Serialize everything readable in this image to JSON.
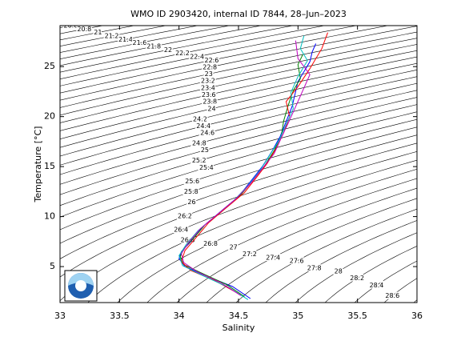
{
  "chart_data": {
    "type": "line",
    "title": "WMO ID 2903420, internal ID 7844, 28–Jun–2023",
    "x_label": "Salinity",
    "y_label": "Temperature [°C]",
    "xlim": [
      33,
      36
    ],
    "ylim": [
      1.4,
      29.1
    ],
    "xticks": [
      33,
      33.5,
      34,
      34.5,
      35,
      35.5,
      36
    ],
    "yticks": [
      5,
      10,
      15,
      20,
      25
    ],
    "contour_levels": [
      20.6,
      20.8,
      21,
      21.2,
      21.4,
      21.6,
      21.8,
      22,
      22.2,
      22.4,
      22.6,
      22.8,
      23,
      23.2,
      23.4,
      23.6,
      23.8,
      24,
      24.2,
      24.4,
      24.6,
      24.8,
      25,
      25.2,
      25.4,
      25.6,
      25.8,
      26,
      26.2,
      26.4,
      26.6,
      26.8,
      27,
      27.2,
      27.4,
      27.6,
      27.8,
      28,
      28.2,
      28.4,
      28.6,
      28.8
    ],
    "contour_color": "#000000",
    "series": [
      {
        "color": "#0000ff",
        "x": [
          34.6,
          34.45,
          34.2,
          34.05,
          34.0,
          34.02,
          34.1,
          34.2,
          34.35,
          34.5,
          34.6,
          34.7,
          34.78,
          34.85,
          34.9,
          34.95,
          34.98,
          35.0,
          35.05,
          35.1,
          35.12,
          35.15
        ],
        "values": [
          1.8,
          3,
          4.2,
          5,
          5.8,
          6.5,
          7.5,
          9,
          10.5,
          12,
          13.5,
          15,
          16.5,
          18,
          19.5,
          21,
          22.5,
          23.5,
          24.5,
          25.5,
          26.5,
          27.3
        ]
      },
      {
        "color": "#008000",
        "x": [
          34.55,
          34.4,
          34.18,
          34.04,
          34.01,
          34.04,
          34.12,
          34.22,
          34.36,
          34.52,
          34.62,
          34.72,
          34.8,
          34.86,
          34.88,
          34.92,
          34.96,
          35.02,
          35.0,
          35.04
        ],
        "values": [
          2.0,
          3.2,
          4.4,
          5.2,
          6.0,
          6.8,
          7.8,
          9.2,
          10.6,
          12.2,
          13.6,
          15.1,
          16.6,
          18.1,
          19.6,
          21.2,
          22.6,
          23.8,
          25.2,
          26.2
        ]
      },
      {
        "color": "#ff0000",
        "x": [
          34.5,
          34.3,
          34.1,
          34.02,
          34.05,
          34.15,
          34.25,
          34.4,
          34.55,
          34.65,
          34.74,
          34.82,
          34.88,
          34.93,
          34.9,
          35.0,
          35.1,
          35.2,
          35.25
        ],
        "values": [
          2.3,
          3.6,
          4.6,
          5.5,
          6.6,
          8.0,
          9.4,
          10.9,
          12.4,
          13.9,
          15.3,
          16.9,
          18.4,
          20.0,
          21.5,
          23.0,
          24.8,
          26.8,
          28.4
        ]
      },
      {
        "color": "#00bfbf",
        "x": [
          34.58,
          34.42,
          34.2,
          34.03,
          34.0,
          34.06,
          34.16,
          34.3,
          34.46,
          34.58,
          34.68,
          34.76,
          34.84,
          34.9,
          34.96,
          34.94,
          35.0,
          35.08,
          35.02,
          35.05
        ],
        "values": [
          1.7,
          2.9,
          4.1,
          5.1,
          6.1,
          7.2,
          8.6,
          10.0,
          11.6,
          13.1,
          14.6,
          16.1,
          17.6,
          19.2,
          20.8,
          22.4,
          24.0,
          25.6,
          26.8,
          28.1
        ]
      },
      {
        "color": "#bf00bf",
        "x": [
          34.52,
          34.35,
          34.15,
          34.04,
          34.02,
          34.08,
          34.18,
          34.32,
          34.48,
          34.6,
          34.7,
          34.8,
          34.86,
          34.92,
          34.98,
          35.04,
          35.1,
          35.0,
          34.98
        ],
        "values": [
          2.1,
          3.4,
          4.5,
          5.4,
          6.3,
          7.4,
          8.8,
          10.2,
          11.8,
          13.3,
          14.8,
          16.3,
          17.9,
          19.4,
          21.0,
          22.6,
          24.2,
          25.8,
          27.6
        ]
      }
    ]
  }
}
